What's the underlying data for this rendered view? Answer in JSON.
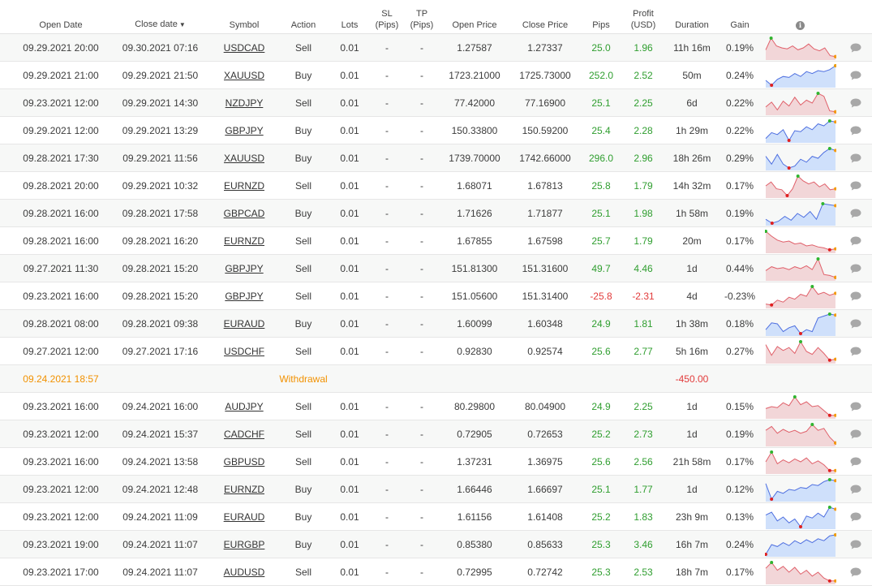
{
  "header": {
    "open_date": "Open Date",
    "close_date": "Close date",
    "sort_indicator": "▼",
    "symbol": "Symbol",
    "action": "Action",
    "lots": "Lots",
    "sl": "SL",
    "sl_unit": "(Pips)",
    "tp": "TP",
    "tp_unit": "(Pips)",
    "open_price": "Open Price",
    "close_price": "Close Price",
    "pips": "Pips",
    "profit": "Profit",
    "profit_unit": "(USD)",
    "duration": "Duration",
    "gain": "Gain",
    "info_icon": "info-icon"
  },
  "colors": {
    "positive": "#2f9e2f",
    "negative": "#e23b3b",
    "withdrawal": "#f29100",
    "sell_fill": "#f2d6d8",
    "sell_line": "#e0606a",
    "buy_fill": "#cfe0fb",
    "buy_line": "#4e6fe0"
  },
  "trades": [
    {
      "type": "trade",
      "open": "09.29.2021 20:00",
      "close": "09.30.2021 07:16",
      "symbol": "USDCAD",
      "action": "Sell",
      "lots": "0.01",
      "sl": "-",
      "tp": "-",
      "open_price": "1.27587",
      "close_price": "1.27337",
      "pips": "25.0",
      "profit": "1.96",
      "duration": "11h 16m",
      "gain": "0.19%",
      "spark": [
        0.4,
        1.0,
        0.6,
        0.5,
        0.45,
        0.6,
        0.4,
        0.5,
        0.7,
        0.45,
        0.35,
        0.5,
        0.1,
        0.05
      ]
    },
    {
      "type": "trade",
      "open": "09.29.2021 21:00",
      "close": "09.29.2021 21:50",
      "symbol": "XAUUSD",
      "action": "Buy",
      "lots": "0.01",
      "sl": "-",
      "tp": "-",
      "open_price": "1723.21000",
      "close_price": "1725.73000",
      "pips": "252.0",
      "profit": "2.52",
      "duration": "50m",
      "gain": "0.24%",
      "spark": [
        0.25,
        0.0,
        0.3,
        0.45,
        0.4,
        0.6,
        0.45,
        0.7,
        0.6,
        0.75,
        0.7,
        0.8,
        1.0
      ]
    },
    {
      "type": "trade",
      "open": "09.23.2021 12:00",
      "close": "09.29.2021 14:30",
      "symbol": "NZDJPY",
      "action": "Sell",
      "lots": "0.01",
      "sl": "-",
      "tp": "-",
      "open_price": "77.42000",
      "close_price": "77.16900",
      "pips": "25.1",
      "profit": "2.25",
      "duration": "6d",
      "gain": "0.22%",
      "spark": [
        0.3,
        0.55,
        0.15,
        0.6,
        0.35,
        0.8,
        0.4,
        0.65,
        0.5,
        1.0,
        0.85,
        0.1,
        0.05
      ]
    },
    {
      "type": "trade",
      "open": "09.29.2021 12:00",
      "close": "09.29.2021 13:29",
      "symbol": "GBPJPY",
      "action": "Buy",
      "lots": "0.01",
      "sl": "-",
      "tp": "-",
      "open_price": "150.33800",
      "close_price": "150.59200",
      "pips": "25.4",
      "profit": "2.28",
      "duration": "1h 29m",
      "gain": "0.22%",
      "spark": [
        0.1,
        0.4,
        0.3,
        0.55,
        0.0,
        0.5,
        0.45,
        0.7,
        0.55,
        0.85,
        0.75,
        1.0,
        0.95
      ]
    },
    {
      "type": "trade",
      "open": "09.28.2021 17:30",
      "close": "09.29.2021 11:56",
      "symbol": "XAUUSD",
      "action": "Buy",
      "lots": "0.01",
      "sl": "-",
      "tp": "-",
      "open_price": "1739.70000",
      "close_price": "1742.66000",
      "pips": "296.0",
      "profit": "2.96",
      "duration": "18h 26m",
      "gain": "0.29%",
      "spark": [
        0.6,
        0.2,
        0.7,
        0.2,
        0.0,
        0.1,
        0.45,
        0.3,
        0.6,
        0.5,
        0.8,
        1.0,
        0.9
      ]
    },
    {
      "type": "trade",
      "open": "09.28.2021 20:00",
      "close": "09.29.2021 10:32",
      "symbol": "EURNZD",
      "action": "Sell",
      "lots": "0.01",
      "sl": "-",
      "tp": "-",
      "open_price": "1.68071",
      "close_price": "1.67813",
      "pips": "25.8",
      "profit": "1.79",
      "duration": "14h 32m",
      "gain": "0.17%",
      "spark": [
        0.5,
        0.7,
        0.35,
        0.3,
        0.0,
        0.35,
        1.0,
        0.75,
        0.6,
        0.7,
        0.45,
        0.6,
        0.3,
        0.35
      ]
    },
    {
      "type": "trade",
      "open": "09.28.2021 16:00",
      "close": "09.28.2021 17:58",
      "symbol": "GBPCAD",
      "action": "Buy",
      "lots": "0.01",
      "sl": "-",
      "tp": "-",
      "open_price": "1.71626",
      "close_price": "1.71877",
      "pips": "25.1",
      "profit": "1.98",
      "duration": "1h 58m",
      "gain": "0.19%",
      "spark": [
        0.2,
        0.0,
        0.1,
        0.35,
        0.15,
        0.5,
        0.3,
        0.6,
        0.2,
        1.0,
        0.95,
        0.9
      ]
    },
    {
      "type": "trade",
      "open": "09.28.2021 16:00",
      "close": "09.28.2021 16:20",
      "symbol": "EURNZD",
      "action": "Sell",
      "lots": "0.01",
      "sl": "-",
      "tp": "-",
      "open_price": "1.67855",
      "close_price": "1.67598",
      "pips": "25.7",
      "profit": "1.79",
      "duration": "20m",
      "gain": "0.17%",
      "spark": [
        1.0,
        0.75,
        0.55,
        0.45,
        0.5,
        0.35,
        0.4,
        0.25,
        0.3,
        0.2,
        0.15,
        0.05,
        0.1
      ]
    },
    {
      "type": "trade",
      "open": "09.27.2021 11:30",
      "close": "09.28.2021 15:20",
      "symbol": "GBPJPY",
      "action": "Sell",
      "lots": "0.01",
      "sl": "-",
      "tp": "-",
      "open_price": "151.81300",
      "close_price": "151.31600",
      "pips": "49.7",
      "profit": "4.46",
      "duration": "1d",
      "gain": "0.44%",
      "spark": [
        0.4,
        0.6,
        0.5,
        0.55,
        0.45,
        0.6,
        0.5,
        0.65,
        0.45,
        1.0,
        0.2,
        0.15,
        0.05
      ]
    },
    {
      "type": "trade",
      "open": "09.23.2021 16:00",
      "close": "09.28.2021 15:20",
      "symbol": "GBPJPY",
      "action": "Sell",
      "lots": "0.01",
      "sl": "-",
      "tp": "-",
      "open_price": "151.05600",
      "close_price": "151.31400",
      "pips": "-25.8",
      "profit": "-2.31",
      "duration": "4d",
      "gain": "-0.23%",
      "spark": [
        0.1,
        0.05,
        0.3,
        0.2,
        0.45,
        0.35,
        0.6,
        0.5,
        1.0,
        0.6,
        0.7,
        0.55,
        0.65
      ]
    },
    {
      "type": "trade",
      "open": "09.28.2021 08:00",
      "close": "09.28.2021 09:38",
      "symbol": "EURAUD",
      "action": "Buy",
      "lots": "0.01",
      "sl": "-",
      "tp": "-",
      "open_price": "1.60099",
      "close_price": "1.60348",
      "pips": "24.9",
      "profit": "1.81",
      "duration": "1h 38m",
      "gain": "0.18%",
      "spark": [
        0.2,
        0.55,
        0.5,
        0.1,
        0.3,
        0.4,
        0.0,
        0.2,
        0.1,
        0.8,
        0.9,
        1.0,
        0.95
      ]
    },
    {
      "type": "trade",
      "open": "09.27.2021 12:00",
      "close": "09.27.2021 17:16",
      "symbol": "USDCHF",
      "action": "Sell",
      "lots": "0.01",
      "sl": "-",
      "tp": "-",
      "open_price": "0.92830",
      "close_price": "0.92574",
      "pips": "25.6",
      "profit": "2.77",
      "duration": "5h 16m",
      "gain": "0.27%",
      "spark": [
        0.85,
        0.3,
        0.75,
        0.55,
        0.7,
        0.4,
        1.0,
        0.5,
        0.35,
        0.7,
        0.4,
        0.05,
        0.1
      ]
    },
    {
      "type": "withdrawal",
      "open": "09.24.2021 18:57",
      "label": "Withdrawal",
      "profit": "-450.00"
    },
    {
      "type": "trade",
      "open": "09.23.2021 16:00",
      "close": "09.24.2021 16:00",
      "symbol": "AUDJPY",
      "action": "Sell",
      "lots": "0.01",
      "sl": "-",
      "tp": "-",
      "open_price": "80.29800",
      "close_price": "80.04900",
      "pips": "24.9",
      "profit": "2.25",
      "duration": "1d",
      "gain": "0.15%",
      "spark": [
        0.4,
        0.5,
        0.45,
        0.7,
        0.55,
        1.0,
        0.6,
        0.75,
        0.5,
        0.55,
        0.3,
        0.05,
        0.05
      ]
    },
    {
      "type": "trade",
      "open": "09.23.2021 12:00",
      "close": "09.24.2021 15:37",
      "symbol": "CADCHF",
      "action": "Sell",
      "lots": "0.01",
      "sl": "-",
      "tp": "-",
      "open_price": "0.72905",
      "close_price": "0.72653",
      "pips": "25.2",
      "profit": "2.73",
      "duration": "1d",
      "gain": "0.19%",
      "spark": [
        0.7,
        0.9,
        0.55,
        0.75,
        0.6,
        0.7,
        0.55,
        0.65,
        1.0,
        0.7,
        0.8,
        0.35,
        0.05
      ]
    },
    {
      "type": "trade",
      "open": "09.23.2021 16:00",
      "close": "09.24.2021 13:58",
      "symbol": "GBPUSD",
      "action": "Sell",
      "lots": "0.01",
      "sl": "-",
      "tp": "-",
      "open_price": "1.37231",
      "close_price": "1.36975",
      "pips": "25.6",
      "profit": "2.56",
      "duration": "21h 58m",
      "gain": "0.17%",
      "spark": [
        0.5,
        1.0,
        0.4,
        0.6,
        0.45,
        0.65,
        0.5,
        0.7,
        0.4,
        0.55,
        0.35,
        0.05,
        0.05
      ]
    },
    {
      "type": "trade",
      "open": "09.23.2021 12:00",
      "close": "09.24.2021 12:48",
      "symbol": "EURNZD",
      "action": "Buy",
      "lots": "0.01",
      "sl": "-",
      "tp": "-",
      "open_price": "1.66446",
      "close_price": "1.66697",
      "pips": "25.1",
      "profit": "1.77",
      "duration": "1d",
      "gain": "0.12%",
      "spark": [
        0.8,
        0.0,
        0.4,
        0.3,
        0.5,
        0.45,
        0.6,
        0.55,
        0.75,
        0.7,
        0.9,
        1.0,
        0.95
      ]
    },
    {
      "type": "trade",
      "open": "09.23.2021 12:00",
      "close": "09.24.2021 11:09",
      "symbol": "EURAUD",
      "action": "Buy",
      "lots": "0.01",
      "sl": "-",
      "tp": "-",
      "open_price": "1.61156",
      "close_price": "1.61408",
      "pips": "25.2",
      "profit": "1.83",
      "duration": "23h 9m",
      "gain": "0.13%",
      "spark": [
        0.6,
        0.75,
        0.3,
        0.5,
        0.2,
        0.4,
        0.0,
        0.55,
        0.45,
        0.7,
        0.5,
        1.0,
        0.9
      ]
    },
    {
      "type": "trade",
      "open": "09.23.2021 19:00",
      "close": "09.24.2021 11:07",
      "symbol": "EURGBP",
      "action": "Buy",
      "lots": "0.01",
      "sl": "-",
      "tp": "-",
      "open_price": "0.85380",
      "close_price": "0.85633",
      "pips": "25.3",
      "profit": "3.46",
      "duration": "16h 7m",
      "gain": "0.24%",
      "spark": [
        0.0,
        0.5,
        0.4,
        0.6,
        0.45,
        0.7,
        0.55,
        0.75,
        0.6,
        0.8,
        0.7,
        0.95,
        1.0
      ]
    },
    {
      "type": "trade",
      "open": "09.23.2021 17:00",
      "close": "09.24.2021 11:07",
      "symbol": "AUDUSD",
      "action": "Sell",
      "lots": "0.01",
      "sl": "-",
      "tp": "-",
      "open_price": "0.72995",
      "close_price": "0.72742",
      "pips": "25.3",
      "profit": "2.53",
      "duration": "18h 7m",
      "gain": "0.17%",
      "spark": [
        0.7,
        1.0,
        0.6,
        0.8,
        0.5,
        0.75,
        0.4,
        0.6,
        0.3,
        0.5,
        0.2,
        0.05,
        0.05
      ]
    }
  ]
}
